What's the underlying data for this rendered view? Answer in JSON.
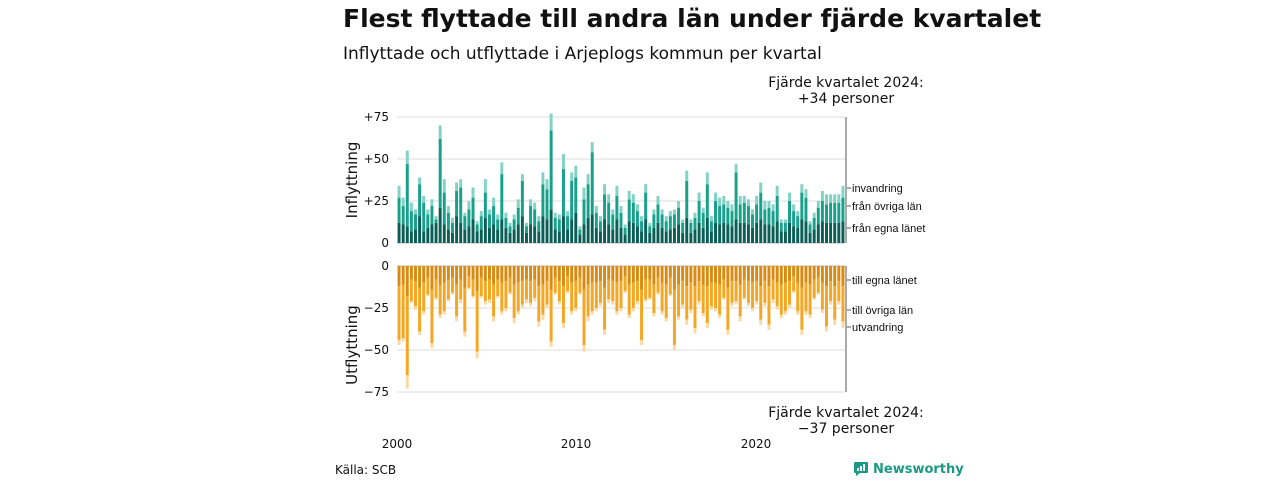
{
  "header": {
    "title": "Flest flyttade till andra län under fjärde kvartalet",
    "subtitle": "Inflyttade och utflyttade i Arjeplogs kommun per kvartal"
  },
  "notes": {
    "top_line1": "Fjärde kvartalet 2024:",
    "top_line2": "+34 personer",
    "bottom_line1": "Fjärde kvartalet 2024:",
    "bottom_line2": "−37 personer"
  },
  "footer": {
    "source": "Källa: SCB",
    "brand": "Newsworthy"
  },
  "colors": {
    "in_own": "#0b5e55",
    "in_other": "#17a08a",
    "in_immig": "#82d2c6",
    "out_own": "#d98a12",
    "out_other": "#f5a623",
    "out_emig": "#fbd9a3",
    "grid": "#dddddd",
    "brand": "#1a9a83"
  },
  "chart_data": {
    "type": "bar",
    "stacked": true,
    "x_start": "2000 Q1",
    "x_end": "2024 Q4",
    "x_ticks": [
      "2000",
      "2010",
      "2020"
    ],
    "panels": [
      {
        "ylabel": "Inflyttning",
        "ylim": [
          0,
          80
        ],
        "y_ticks": [
          0,
          25,
          50,
          75
        ],
        "y_tick_labels": [
          "0",
          "+25",
          "+50",
          "+75"
        ],
        "series_names": [
          "från egna länet",
          "från övriga län",
          "invandring"
        ],
        "legend_order": [
          "invandring",
          "från övriga län",
          "från egna länet"
        ]
      },
      {
        "ylabel": "Utflyttning",
        "ylim": [
          -80,
          0
        ],
        "y_ticks": [
          0,
          -25,
          -50,
          -75
        ],
        "y_tick_labels": [
          "0",
          "−25",
          "−50",
          "−75"
        ],
        "series_names": [
          "till egna länet",
          "till övriga län",
          "utvandring"
        ],
        "legend_order": [
          "till egna länet",
          "till övriga län",
          "utvandring"
        ]
      }
    ],
    "inflyttning_total": [
      34,
      27,
      55,
      24,
      20,
      39,
      28,
      20,
      26,
      16,
      70,
      38,
      22,
      15,
      36,
      38,
      18,
      25,
      33,
      13,
      19,
      38,
      20,
      27,
      17,
      48,
      18,
      12,
      17,
      26,
      41,
      12,
      26,
      24,
      16,
      42,
      38,
      77,
      18,
      17,
      53,
      19,
      42,
      46,
      10,
      33,
      41,
      60,
      22,
      16,
      35,
      29,
      20,
      34,
      22,
      11,
      31,
      29,
      23,
      16,
      35,
      12,
      20,
      28,
      20,
      16,
      19,
      20,
      25,
      14,
      43,
      14,
      18,
      30,
      21,
      42,
      16,
      30,
      27,
      28,
      25,
      23,
      47,
      28,
      28,
      26,
      20,
      28,
      36,
      25,
      25,
      23,
      34,
      14,
      14,
      30,
      23,
      19,
      35,
      32,
      13,
      18,
      25,
      31,
      29,
      29,
      29,
      29,
      34
    ],
    "inflyttning_own": [
      12,
      11,
      10,
      7,
      8,
      16,
      7,
      9,
      11,
      12,
      21,
      11,
      8,
      6,
      16,
      12,
      8,
      10,
      14,
      7,
      8,
      15,
      9,
      11,
      8,
      14,
      9,
      6,
      8,
      11,
      16,
      6,
      11,
      10,
      7,
      16,
      14,
      20,
      8,
      7,
      16,
      8,
      14,
      18,
      5,
      11,
      15,
      17,
      9,
      7,
      14,
      11,
      8,
      14,
      9,
      5,
      13,
      12,
      10,
      7,
      14,
      6,
      9,
      12,
      9,
      7,
      8,
      9,
      11,
      6,
      15,
      6,
      8,
      12,
      9,
      15,
      7,
      12,
      11,
      12,
      11,
      10,
      14,
      12,
      12,
      11,
      9,
      12,
      14,
      11,
      11,
      10,
      13,
      7,
      7,
      12,
      10,
      9,
      14,
      13,
      6,
      8,
      11,
      13,
      12,
      12,
      12,
      12,
      13
    ],
    "inflyttning_other": [
      15,
      11,
      37,
      12,
      9,
      19,
      17,
      8,
      11,
      2,
      41,
      19,
      10,
      6,
      15,
      21,
      8,
      10,
      13,
      4,
      8,
      15,
      8,
      11,
      6,
      27,
      6,
      4,
      6,
      10,
      21,
      4,
      11,
      10,
      6,
      19,
      18,
      47,
      7,
      7,
      28,
      8,
      23,
      21,
      3,
      15,
      20,
      37,
      9,
      6,
      15,
      13,
      9,
      14,
      9,
      4,
      13,
      12,
      9,
      6,
      16,
      4,
      8,
      11,
      8,
      6,
      8,
      8,
      10,
      6,
      22,
      6,
      7,
      13,
      9,
      20,
      6,
      13,
      11,
      11,
      10,
      9,
      28,
      11,
      12,
      11,
      8,
      11,
      16,
      9,
      10,
      9,
      15,
      5,
      5,
      13,
      9,
      7,
      16,
      14,
      5,
      7,
      10,
      12,
      11,
      12,
      12,
      12,
      14
    ],
    "utflyttning_total": [
      -47,
      -45,
      -73,
      -22,
      -26,
      -41,
      -29,
      -18,
      -49,
      -20,
      -31,
      -29,
      -21,
      -17,
      -33,
      -22,
      -42,
      -14,
      -19,
      -55,
      -19,
      -23,
      -22,
      -33,
      -19,
      -29,
      -27,
      -17,
      -34,
      -29,
      -25,
      -22,
      -24,
      -21,
      -36,
      -32,
      -25,
      -48,
      -17,
      -23,
      -37,
      -16,
      -29,
      -27,
      -17,
      -51,
      -33,
      -29,
      -27,
      -24,
      -41,
      -22,
      -23,
      -29,
      -27,
      -16,
      -31,
      -27,
      -23,
      -47,
      -21,
      -20,
      -30,
      -17,
      -29,
      -33,
      -18,
      -50,
      -32,
      -25,
      -35,
      -28,
      -40,
      -23,
      -30,
      -37,
      -26,
      -27,
      -31,
      -20,
      -41,
      -24,
      -23,
      -33,
      -20,
      -24,
      -27,
      -23,
      -35,
      -24,
      -38,
      -22,
      -26,
      -31,
      -29,
      -25,
      -16,
      -29,
      -41,
      -29,
      -31,
      -20,
      -17,
      -28,
      -39,
      -23,
      -35,
      -23,
      -37
    ],
    "utflyttning_own": [
      -12,
      -11,
      -18,
      -8,
      -9,
      -13,
      -10,
      -7,
      -14,
      -8,
      -11,
      -10,
      -8,
      -7,
      -11,
      -8,
      -13,
      -6,
      -8,
      -15,
      -7,
      -9,
      -8,
      -11,
      -8,
      -10,
      -9,
      -7,
      -11,
      -10,
      -9,
      -8,
      -9,
      -8,
      -12,
      -11,
      -9,
      -14,
      -7,
      -9,
      -12,
      -6,
      -10,
      -9,
      -7,
      -14,
      -11,
      -10,
      -10,
      -9,
      -13,
      -8,
      -9,
      -10,
      -9,
      -6,
      -11,
      -10,
      -9,
      -14,
      -8,
      -8,
      -11,
      -7,
      -10,
      -11,
      -7,
      -14,
      -11,
      -9,
      -12,
      -10,
      -12,
      -9,
      -11,
      -12,
      -10,
      -10,
      -11,
      -8,
      -13,
      -9,
      -9,
      -11,
      -8,
      -9,
      -10,
      -9,
      -12,
      -9,
      -12,
      -8,
      -10,
      -11,
      -10,
      -9,
      -6,
      -10,
      -13,
      -10,
      -11,
      -8,
      -7,
      -10,
      -12,
      -9,
      -12,
      -9,
      -12
    ],
    "utflyttning_other": [
      -32,
      -32,
      -47,
      -13,
      -15,
      -26,
      -17,
      -10,
      -32,
      -11,
      -18,
      -17,
      -12,
      -9,
      -19,
      -12,
      -26,
      -7,
      -10,
      -36,
      -11,
      -12,
      -12,
      -19,
      -10,
      -17,
      -16,
      -9,
      -20,
      -17,
      -14,
      -12,
      -13,
      -11,
      -21,
      -18,
      -14,
      -31,
      -9,
      -12,
      -22,
      -9,
      -17,
      -16,
      -9,
      -33,
      -19,
      -17,
      -15,
      -13,
      -25,
      -12,
      -12,
      -17,
      -16,
      -9,
      -18,
      -15,
      -12,
      -30,
      -12,
      -11,
      -17,
      -9,
      -17,
      -20,
      -10,
      -33,
      -19,
      -14,
      -20,
      -16,
      -25,
      -12,
      -17,
      -22,
      -14,
      -15,
      -18,
      -11,
      -25,
      -13,
      -12,
      -19,
      -11,
      -13,
      -15,
      -12,
      -20,
      -13,
      -23,
      -12,
      -14,
      -18,
      -17,
      -14,
      -9,
      -17,
      -25,
      -17,
      -18,
      -11,
      -9,
      -16,
      -24,
      -12,
      -20,
      -12,
      -21
    ]
  }
}
